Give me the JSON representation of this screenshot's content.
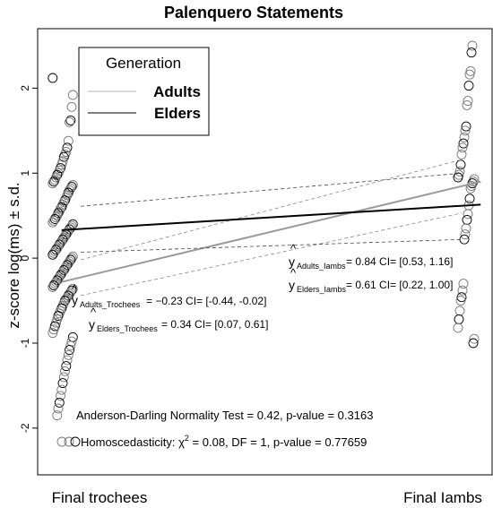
{
  "chart_data": {
    "type": "scatter",
    "title": "Palenquero Statements",
    "xlabel": "",
    "ylabel": "z-score log(ms) ± s.d.",
    "categories": [
      "Final trochees",
      "Final Iambs"
    ],
    "ylim": [
      -2.55,
      2.7
    ],
    "yticks": [
      -2,
      -1,
      0,
      1,
      2
    ],
    "grid": false,
    "legend": {
      "title": "Generation",
      "placement": "top-left",
      "entries": [
        "Adults",
        "Elders"
      ]
    },
    "colors": {
      "adults": "#9a9a9a",
      "elders": "#000000"
    },
    "series": [
      {
        "name": "Adults",
        "fit": [
          -0.23,
          0.84
        ],
        "ci_lower": [
          -0.44,
          0.53
        ],
        "ci_upper": [
          -0.02,
          1.16
        ],
        "line_x": [
          -0.05,
          1.05
        ],
        "line_y": [
          -0.28,
          0.9
        ]
      },
      {
        "name": "Elders",
        "fit": [
          0.34,
          0.61
        ],
        "ci_lower": [
          0.07,
          0.22
        ],
        "ci_upper": [
          0.61,
          1.0
        ],
        "line_x": [
          -0.05,
          1.05
        ],
        "line_y": [
          0.33,
          0.63
        ]
      }
    ],
    "points": {
      "trochees": [
        2.12,
        1.92,
        1.78,
        1.62,
        1.6,
        1.38,
        1.3,
        1.25,
        1.22,
        1.19,
        1.14,
        1.1,
        1.06,
        1.03,
        1.0,
        0.98,
        0.95,
        0.92,
        0.9,
        0.88,
        0.86,
        0.84,
        0.82,
        0.8,
        0.77,
        0.74,
        0.71,
        0.68,
        0.66,
        0.63,
        0.6,
        0.58,
        0.55,
        0.53,
        0.5,
        0.48,
        0.46,
        0.44,
        0.42,
        0.4,
        0.38,
        0.36,
        0.34,
        0.32,
        0.3,
        0.28,
        0.26,
        0.24,
        0.22,
        0.2,
        0.18,
        0.16,
        0.14,
        0.12,
        0.1,
        0.08,
        0.06,
        0.04,
        0.02,
        0.0,
        -0.02,
        -0.04,
        -0.06,
        -0.08,
        -0.1,
        -0.12,
        -0.14,
        -0.16,
        -0.18,
        -0.2,
        -0.22,
        -0.24,
        -0.26,
        -0.28,
        -0.3,
        -0.32,
        -0.34,
        -0.36,
        -0.38,
        -0.4,
        -0.42,
        -0.44,
        -0.46,
        -0.48,
        -0.5,
        -0.53,
        -0.56,
        -0.59,
        -0.62,
        -0.65,
        -0.68,
        -0.72,
        -0.76,
        -0.8,
        -0.84,
        -0.88,
        -0.93,
        -0.98,
        -1.03,
        -1.08,
        -1.14,
        -1.2,
        -1.27,
        -1.33,
        -1.4,
        -1.47,
        -1.55,
        -1.62,
        -1.7,
        -1.77,
        -1.85
      ],
      "iambs": [
        2.5,
        2.42,
        2.2,
        2.16,
        2.03,
        1.85,
        1.8,
        1.55,
        1.5,
        1.42,
        1.35,
        1.3,
        1.22,
        1.1,
        1.02,
        0.98,
        0.95,
        0.93,
        0.9,
        0.88,
        0.85,
        0.82,
        0.7,
        0.62,
        0.52,
        0.45,
        0.35,
        0.28,
        0.22,
        -0.3,
        -0.38,
        -0.46,
        -0.5,
        -0.62,
        -0.72,
        -0.82,
        -0.95,
        -1.0
      ]
    },
    "annotations": {
      "adults_iambs": {
        "label": "Adults_Iambs",
        "text": "= 0.84 CI= [0.53, 1.16]"
      },
      "elders_iambs": {
        "label": "Elders_Iambs",
        "text": "= 0.61 CI= [0.22, 1.00]"
      },
      "adults_trochees": {
        "label": "Adults_Trochees",
        "text": "= −0.23 CI= [-0.44, -0.02]"
      },
      "elders_trochees": {
        "label": "Elders_Trochees",
        "text": "= 0.34 CI= [0.07, 0.61]"
      },
      "normality_test": "Anderson-Darling Normality Test = 0.42,  p-value = 0.3163",
      "homosced_prefix": "Homoscedasticity: χ",
      "homosced_sup": "2",
      "homosced_suffix": " = 0.08, DF = 1,  p-value = 0.77659"
    }
  }
}
